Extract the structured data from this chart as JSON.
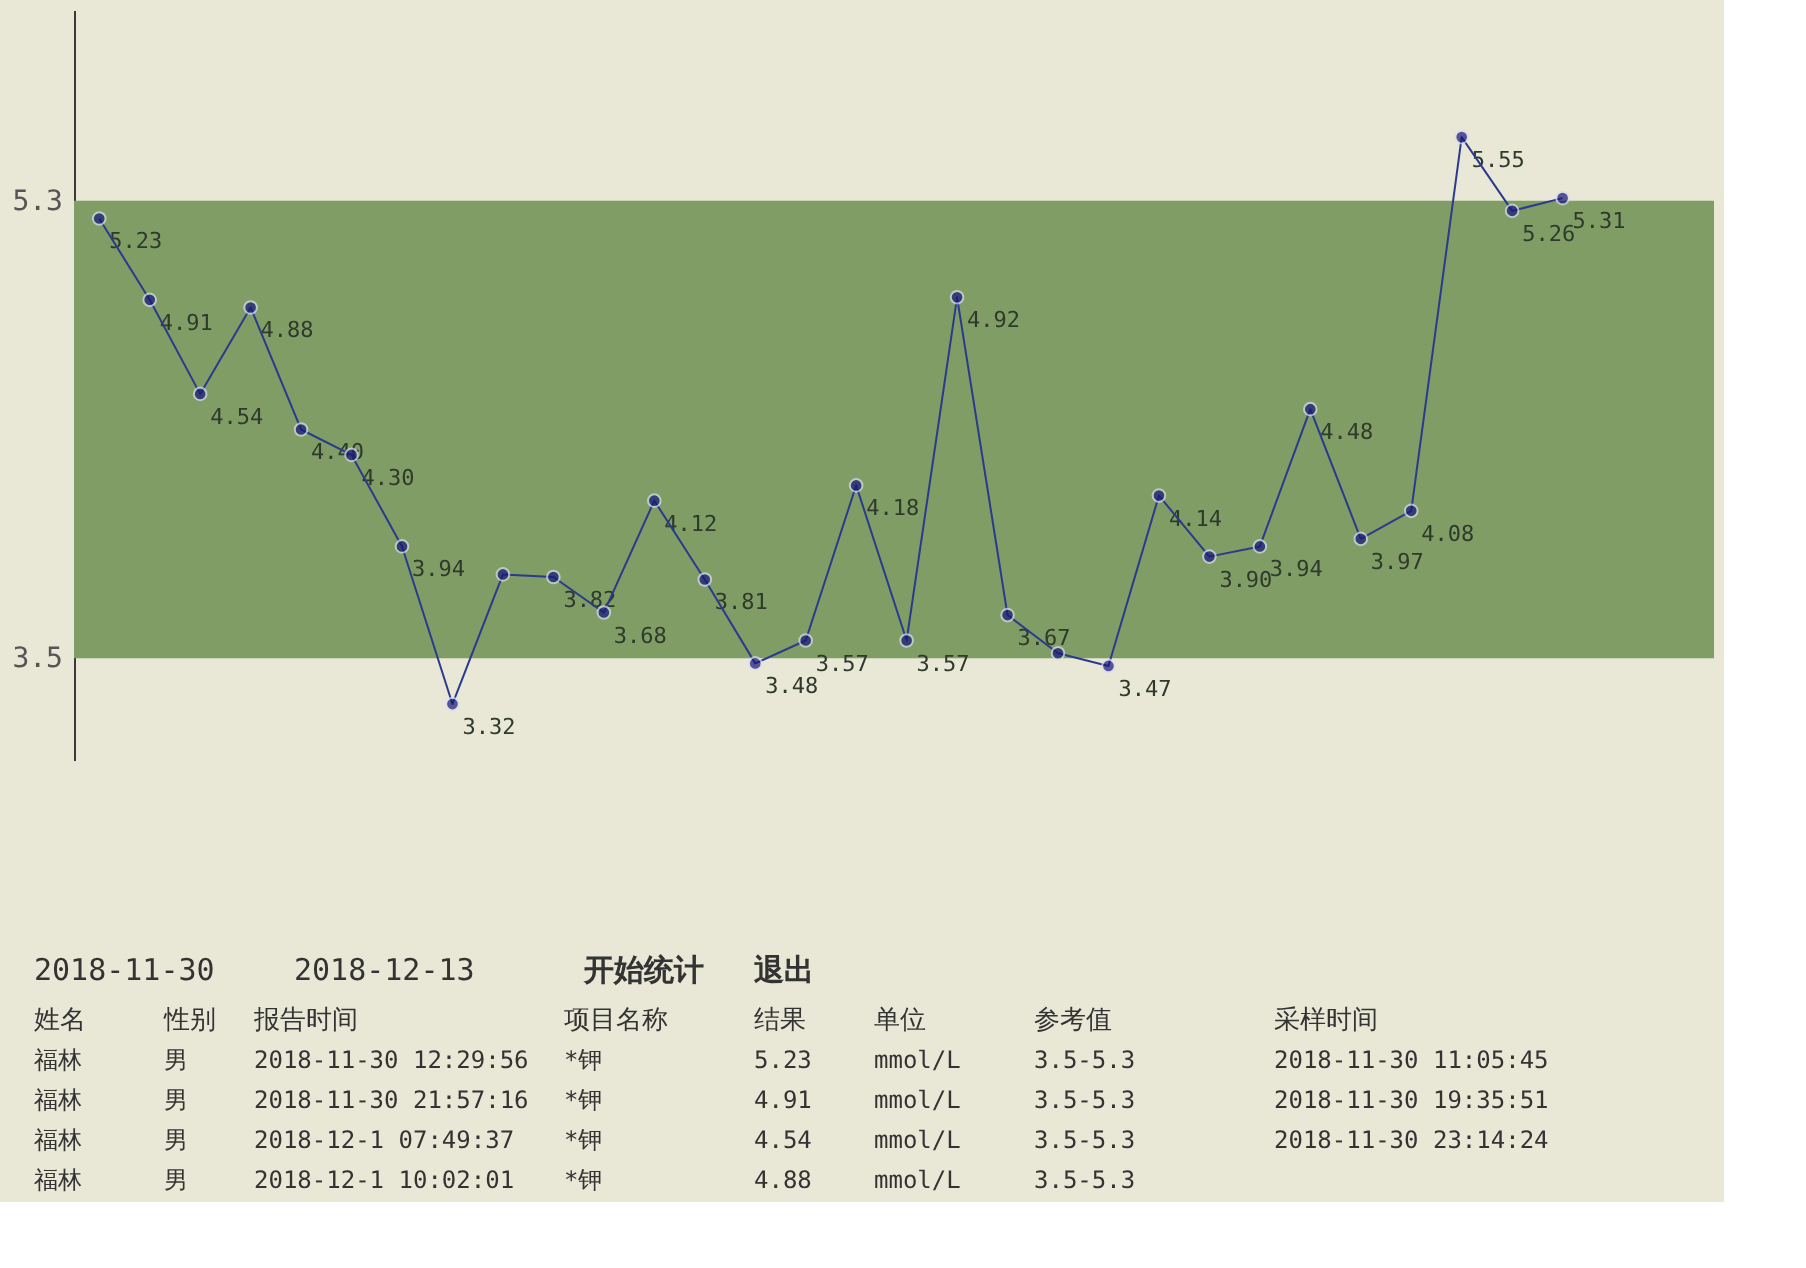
{
  "chart_data": {
    "type": "line",
    "categories": [
      null,
      null,
      null,
      null,
      null,
      null,
      null,
      null,
      null,
      null,
      null,
      null,
      null,
      null,
      null,
      null,
      null,
      null,
      null,
      null,
      null,
      null,
      null,
      null,
      null,
      null,
      null,
      null,
      null,
      null
    ],
    "series": [
      {
        "color": "#2b3a8f",
        "values": [
          5.23,
          4.91,
          4.54,
          4.88,
          4.4,
          4.3,
          3.94,
          3.32,
          3.83,
          3.82,
          3.68,
          4.12,
          3.81,
          3.48,
          3.57,
          4.18,
          3.57,
          4.92,
          3.67,
          3.52,
          3.47,
          4.14,
          3.9,
          3.94,
          4.48,
          3.97,
          4.08,
          5.55,
          5.26,
          5.31
        ]
      }
    ],
    "value_labels": [
      "5.23",
      "4.91",
      "4.54",
      "4.88",
      "4.40",
      "4.30",
      "3.94",
      "3.32",
      null,
      "3.82",
      "3.68",
      "4.12",
      "3.81",
      "3.48",
      "3.57",
      "4.18",
      "3.57",
      "4.92",
      "3.67",
      null,
      "3.47",
      "4.14",
      "3.90",
      "3.94",
      "4.48",
      "3.97",
      "4.08",
      "5.55",
      "5.26",
      "5.31"
    ],
    "ylim": [
      3.1,
      6.05
    ],
    "yticks": [
      3.5,
      5.3
    ],
    "bands": [
      {
        "axis": "y",
        "from": 3.5,
        "to": 5.3,
        "color": "#7f9d64"
      }
    ],
    "marker": "circle",
    "line_style": "solid",
    "grid": false,
    "annotations": [
      "2018-11-30",
      "2018-12-13",
      "开始统计",
      "退出",
      "姓名",
      "性别",
      "报告时间",
      "项目名称",
      "结果",
      "单位",
      "参考值",
      "采样时间",
      "福林",
      "男",
      "2018-11-30 12:29:56",
      "*钾",
      "5.23",
      "mmol/L",
      "3.5-5.3",
      "2018-11-30 11:05:45",
      "福林",
      "男",
      "2018-11-30 21:57:16",
      "*钾",
      "4.91",
      "mmol/L",
      "3.5-5.3",
      "2018-11-30 19:35:51",
      "福林",
      "男",
      "2018-12-1 07:49:37",
      "*钾",
      "4.54",
      "mmol/L",
      "3.5-5.3",
      "2018-11-30 23:14:24",
      "福林",
      "男",
      "2018-12-1 10:02:01",
      "*钾",
      "4.88",
      "mmol/L",
      "3.5-5.3"
    ]
  }
}
